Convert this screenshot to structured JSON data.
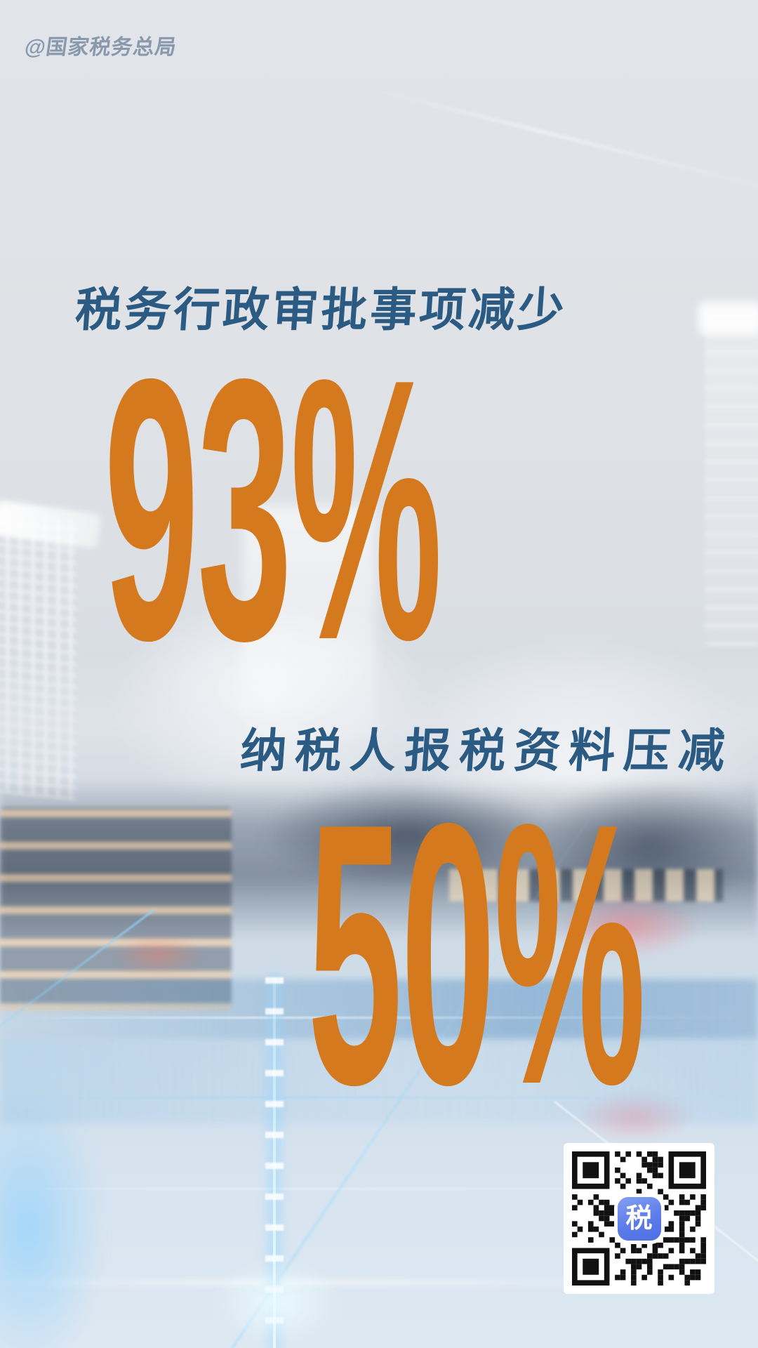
{
  "watermark": {
    "text": "@国家税务总局"
  },
  "stats": [
    {
      "title": "税务行政审批事项减少",
      "value": "93%"
    },
    {
      "title": "纳税人报税资料压减",
      "value": "50%"
    }
  ],
  "qr": {
    "center_label": "税"
  },
  "colors": {
    "accent_orange": "#d5791f",
    "heading_blue": "#2b5a82",
    "watermark_gray_blue": "#8494aa",
    "qr_icon_blue": "#5c7cea",
    "background_top": "#e1e4e8",
    "background_bottom_blue": "#d6e3ef",
    "grid_cyan": "#8cd7ff"
  }
}
